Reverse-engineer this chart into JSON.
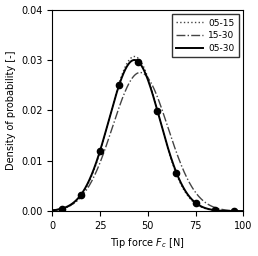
{
  "title": "",
  "xlabel": "Tip force $F_c$ [N]",
  "ylabel": "Density of probability [-]",
  "xlim": [
    0,
    100
  ],
  "ylim": [
    0,
    0.04
  ],
  "yticks": [
    0.0,
    0.01,
    0.02,
    0.03,
    0.04
  ],
  "xticks": [
    0,
    25,
    50,
    75,
    100
  ],
  "legend": [
    "05-15",
    "15-30",
    "05-30"
  ],
  "curve_05_15": {
    "mu": 43,
    "sigma": 13.0,
    "color": "#444444",
    "linestyle": "dotted",
    "linewidth": 1.0
  },
  "curve_15_30": {
    "mu": 46,
    "sigma": 14.5,
    "color": "#444444",
    "linestyle": "dashdot",
    "linewidth": 1.0
  },
  "curve_05_30": {
    "mu": 43,
    "sigma": 13.3,
    "color": "#000000",
    "linestyle": "solid",
    "linewidth": 1.4,
    "marker": "o",
    "marker_color": "#000000",
    "marker_size": 4.5,
    "marker_positions": [
      5,
      15,
      25,
      35,
      45,
      55,
      65,
      75,
      85,
      95
    ]
  },
  "background_color": "#ffffff",
  "font_size": 7,
  "legend_fontsize": 6.5
}
